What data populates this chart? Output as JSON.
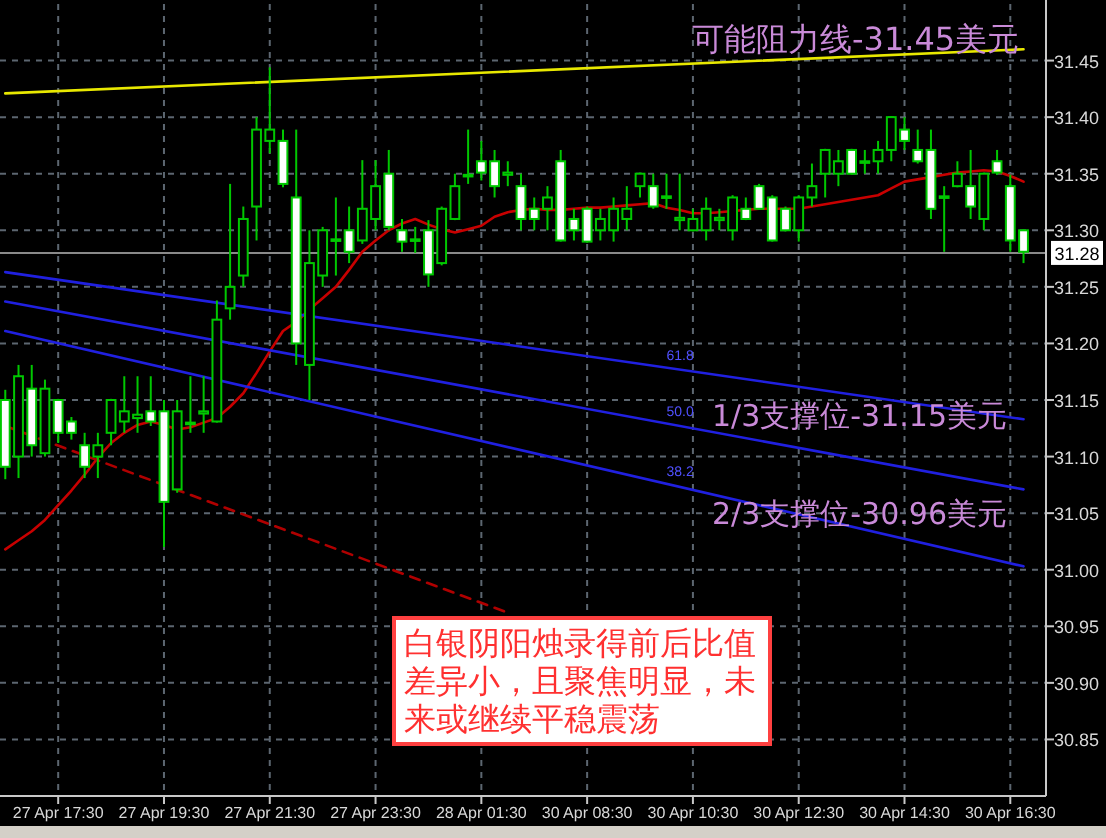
{
  "chart_data": {
    "type": "candlestick",
    "categories": [
      null,
      null,
      null,
      null,
      "27 Apr 17:30",
      null,
      null,
      null,
      null,
      null,
      null,
      null,
      "27 Apr 19:30",
      null,
      null,
      null,
      null,
      null,
      null,
      null,
      "27 Apr 21:30",
      null,
      null,
      null,
      null,
      null,
      null,
      null,
      "27 Apr 23:30",
      null,
      null,
      null,
      null,
      null,
      null,
      null,
      "28 Apr 01:30",
      null,
      null,
      null,
      null,
      null,
      null,
      null,
      "30 Apr 08:30",
      null,
      null,
      null,
      null,
      null,
      null,
      null,
      "30 Apr 10:30",
      null,
      null,
      null,
      null,
      null,
      null,
      null,
      "30 Apr 12:30",
      null,
      null,
      null,
      null,
      null,
      null,
      null,
      "30 Apr 14:30",
      null,
      null,
      null,
      null,
      null,
      null,
      null,
      "30 Apr 16:30",
      null
    ],
    "color": "#00c800",
    "ohlc": [
      [
        31.15,
        31.159,
        31.08,
        31.091
      ],
      [
        31.1,
        31.181,
        31.081,
        31.171
      ],
      [
        31.16,
        31.181,
        31.1,
        31.11
      ],
      [
        31.103,
        31.168,
        31.1,
        31.16
      ],
      [
        31.15,
        31.151,
        31.112,
        31.121
      ],
      [
        31.131,
        31.135,
        31.115,
        31.121
      ],
      [
        31.11,
        31.121,
        31.081,
        31.091
      ],
      [
        31.1,
        31.121,
        31.081,
        31.11
      ],
      [
        31.121,
        31.151,
        31.11,
        31.15
      ],
      [
        31.131,
        31.171,
        31.121,
        31.14
      ],
      [
        31.134,
        31.171,
        31.121,
        31.137
      ],
      [
        31.14,
        31.171,
        31.127,
        31.131
      ],
      [
        31.14,
        31.15,
        31.02,
        31.06
      ],
      [
        31.071,
        31.15,
        31.068,
        31.14
      ],
      [
        31.129,
        31.171,
        31.121,
        31.13
      ],
      [
        31.138,
        31.171,
        31.121,
        31.14
      ],
      [
        31.131,
        31.238,
        31.13,
        31.221
      ],
      [
        31.231,
        31.341,
        31.221,
        31.25
      ],
      [
        31.26,
        31.321,
        31.25,
        31.31
      ],
      [
        31.321,
        31.4,
        31.291,
        31.389
      ],
      [
        31.379,
        31.444,
        31.368,
        31.389
      ],
      [
        31.379,
        31.389,
        31.338,
        31.341
      ],
      [
        31.329,
        31.389,
        31.181,
        31.2
      ],
      [
        31.181,
        31.3,
        31.15,
        31.271
      ],
      [
        31.26,
        31.303,
        31.25,
        31.3
      ],
      [
        31.291,
        31.329,
        31.26,
        31.292
      ],
      [
        31.3,
        31.321,
        31.271,
        31.281
      ],
      [
        31.291,
        31.362,
        31.288,
        31.319
      ],
      [
        31.31,
        31.362,
        31.3,
        31.339
      ],
      [
        31.35,
        31.371,
        31.3,
        31.303
      ],
      [
        31.3,
        31.31,
        31.281,
        31.29
      ],
      [
        31.292,
        31.303,
        31.28,
        31.291
      ],
      [
        31.3,
        31.309,
        31.25,
        31.261
      ],
      [
        31.271,
        31.321,
        31.269,
        31.319
      ],
      [
        31.31,
        31.35,
        31.309,
        31.339
      ],
      [
        31.348,
        31.389,
        31.341,
        31.349
      ],
      [
        31.361,
        31.379,
        31.344,
        31.351
      ],
      [
        31.361,
        31.371,
        31.329,
        31.339
      ],
      [
        31.349,
        31.361,
        31.339,
        31.351
      ],
      [
        31.339,
        31.35,
        31.3,
        31.31
      ],
      [
        31.319,
        31.329,
        31.3,
        31.31
      ],
      [
        31.319,
        31.339,
        31.3,
        31.329
      ],
      [
        31.361,
        31.371,
        31.29,
        31.291
      ],
      [
        31.31,
        31.319,
        31.291,
        31.3
      ],
      [
        31.319,
        31.321,
        31.289,
        31.29
      ],
      [
        31.3,
        31.319,
        31.291,
        31.31
      ],
      [
        31.3,
        31.329,
        31.29,
        31.319
      ],
      [
        31.31,
        31.339,
        31.3,
        31.319
      ],
      [
        31.339,
        31.351,
        31.329,
        31.35
      ],
      [
        31.339,
        31.35,
        31.319,
        31.321
      ],
      [
        31.329,
        31.35,
        31.319,
        31.33
      ],
      [
        31.309,
        31.35,
        31.3,
        31.311
      ],
      [
        31.3,
        31.319,
        31.299,
        31.31
      ],
      [
        31.3,
        31.329,
        31.291,
        31.319
      ],
      [
        31.309,
        31.319,
        31.3,
        31.311
      ],
      [
        31.3,
        31.331,
        31.291,
        31.329
      ],
      [
        31.319,
        31.329,
        31.309,
        31.31
      ],
      [
        31.339,
        31.341,
        31.318,
        31.319
      ],
      [
        31.329,
        31.331,
        31.29,
        31.291
      ],
      [
        31.319,
        31.321,
        31.299,
        31.3
      ],
      [
        31.3,
        31.331,
        31.29,
        31.329
      ],
      [
        31.329,
        31.359,
        31.321,
        31.339
      ],
      [
        31.35,
        31.372,
        31.329,
        31.371
      ],
      [
        31.35,
        31.371,
        31.339,
        31.361
      ],
      [
        31.371,
        31.372,
        31.349,
        31.35
      ],
      [
        31.36,
        31.371,
        31.35,
        31.361
      ],
      [
        31.361,
        31.379,
        31.35,
        31.371
      ],
      [
        31.371,
        31.401,
        31.361,
        31.4
      ],
      [
        31.389,
        31.4,
        31.371,
        31.379
      ],
      [
        31.371,
        31.389,
        31.359,
        31.361
      ],
      [
        31.371,
        31.389,
        31.31,
        31.319
      ],
      [
        31.329,
        31.339,
        31.281,
        31.33
      ],
      [
        31.339,
        31.361,
        31.338,
        31.35
      ],
      [
        31.339,
        31.371,
        31.31,
        31.321
      ],
      [
        31.31,
        31.351,
        31.3,
        31.35
      ],
      [
        31.361,
        31.371,
        31.349,
        31.351
      ],
      [
        31.339,
        31.349,
        31.281,
        31.291
      ],
      [
        31.3,
        31.301,
        31.271,
        31.281
      ]
    ],
    "series": [
      {
        "type": "line",
        "color": "#c80000",
        "values": [
          31.018,
          31.026,
          31.034,
          31.044,
          31.057,
          31.07,
          31.084,
          31.099,
          31.112,
          31.121,
          31.128,
          31.131,
          31.128,
          31.124,
          31.126,
          31.13,
          31.134,
          31.144,
          31.156,
          31.174,
          31.193,
          31.211,
          31.219,
          31.23,
          31.24,
          31.25,
          31.265,
          31.281,
          31.291,
          31.3,
          31.306,
          31.31,
          31.305,
          31.301,
          31.298,
          31.301,
          31.304,
          31.312,
          31.316,
          31.318,
          31.319,
          31.318,
          31.318,
          31.319,
          31.32,
          31.32,
          31.321,
          31.322,
          31.323,
          31.324,
          31.32,
          31.318,
          31.315,
          31.315,
          31.316,
          31.317,
          31.318,
          31.319,
          31.319,
          31.319,
          31.319,
          31.321,
          31.323,
          31.325,
          31.327,
          31.329,
          31.331,
          31.337,
          31.343,
          31.345,
          31.347,
          31.349,
          31.351,
          31.352,
          31.353,
          31.352,
          31.348,
          31.343
        ]
      },
      {
        "type": "line",
        "color": "#e8e800",
        "values": [
          31.421,
          null,
          null,
          null,
          null,
          null,
          null,
          null,
          null,
          null,
          null,
          null,
          null,
          null,
          null,
          null,
          null,
          null,
          null,
          null,
          null,
          null,
          null,
          null,
          null,
          null,
          null,
          null,
          null,
          null,
          null,
          null,
          null,
          null,
          null,
          null,
          null,
          null,
          null,
          null,
          null,
          null,
          null,
          null,
          null,
          null,
          null,
          null,
          null,
          null,
          null,
          null,
          null,
          null,
          null,
          null,
          null,
          null,
          null,
          null,
          null,
          null,
          null,
          null,
          null,
          null,
          null,
          null,
          null,
          null,
          null,
          null,
          null,
          null,
          null,
          null,
          null,
          31.46
        ]
      },
      {
        "type": "line",
        "name": "61.8",
        "color": "#2020e0",
        "values": [
          31.263,
          null,
          null,
          null,
          null,
          null,
          null,
          null,
          null,
          null,
          null,
          null,
          null,
          null,
          null,
          null,
          null,
          null,
          null,
          null,
          null,
          null,
          null,
          null,
          null,
          null,
          null,
          null,
          null,
          null,
          null,
          null,
          null,
          null,
          null,
          null,
          null,
          null,
          null,
          null,
          null,
          null,
          null,
          null,
          null,
          null,
          null,
          null,
          null,
          null,
          null,
          null,
          null,
          null,
          null,
          null,
          null,
          null,
          null,
          null,
          null,
          null,
          null,
          null,
          null,
          null,
          null,
          null,
          null,
          null,
          null,
          null,
          null,
          null,
          null,
          null,
          null,
          31.133
        ]
      },
      {
        "type": "line",
        "name": "50.0",
        "color": "#2020e0",
        "values": [
          31.237,
          null,
          null,
          null,
          null,
          null,
          null,
          null,
          null,
          null,
          null,
          null,
          null,
          null,
          null,
          null,
          null,
          null,
          null,
          null,
          null,
          null,
          null,
          null,
          null,
          null,
          null,
          null,
          null,
          null,
          null,
          null,
          null,
          null,
          null,
          null,
          null,
          null,
          null,
          null,
          null,
          null,
          null,
          null,
          null,
          null,
          null,
          null,
          null,
          null,
          null,
          null,
          null,
          null,
          null,
          null,
          null,
          null,
          null,
          null,
          null,
          null,
          null,
          null,
          null,
          null,
          null,
          null,
          null,
          null,
          null,
          null,
          null,
          null,
          null,
          null,
          null,
          31.071
        ]
      },
      {
        "type": "line",
        "name": "38.2",
        "color": "#2020e0",
        "values": [
          31.211,
          null,
          null,
          null,
          null,
          null,
          null,
          null,
          null,
          null,
          null,
          null,
          null,
          null,
          null,
          null,
          null,
          null,
          null,
          null,
          null,
          null,
          null,
          null,
          null,
          null,
          null,
          null,
          null,
          null,
          null,
          null,
          null,
          null,
          null,
          null,
          null,
          null,
          null,
          null,
          null,
          null,
          null,
          null,
          null,
          null,
          null,
          null,
          null,
          null,
          null,
          null,
          null,
          null,
          null,
          null,
          null,
          null,
          null,
          null,
          null,
          null,
          null,
          null,
          null,
          null,
          null,
          null,
          null,
          null,
          null,
          null,
          null,
          null,
          null,
          null,
          null,
          31.003
        ]
      },
      {
        "type": "line",
        "color": "#b00000",
        "line_style": "dashed",
        "values": [
          31.127,
          null,
          null,
          null,
          null,
          null,
          null,
          null,
          null,
          null,
          null,
          null,
          null,
          null,
          null,
          null,
          null,
          null,
          null,
          null,
          null,
          null,
          null,
          null,
          null,
          null,
          null,
          null,
          null,
          null,
          null,
          null,
          null,
          null,
          null,
          null,
          null,
          null,
          30.962,
          null,
          null,
          null,
          null,
          null,
          null,
          null,
          null,
          null,
          null,
          null,
          null,
          null,
          null,
          null,
          null,
          null,
          null,
          null,
          null,
          null,
          null,
          null,
          null,
          null,
          null,
          null,
          null,
          null,
          null,
          null,
          null,
          null,
          null,
          null,
          null,
          null,
          null,
          null
        ]
      }
    ],
    "ylim": [
      30.8,
      31.5
    ],
    "yticks": [
      30.85,
      {
        "value": 30.9,
        "label": "30.90"
      },
      30.95,
      {
        "value": 31.0,
        "label": "31.00"
      },
      31.05,
      {
        "value": 31.1,
        "label": "31.10"
      },
      31.15,
      {
        "value": 31.2,
        "label": "31.20"
      },
      31.25,
      {
        "value": 31.3,
        "label": "31.30"
      },
      31.35,
      {
        "value": 31.4,
        "label": "31.40"
      },
      31.45
    ],
    "grid": true,
    "ref_lines": [
      {
        "axis": "y",
        "value": 31.28,
        "label": "31.28",
        "color": "#8a8a8a"
      }
    ],
    "annotations": [
      "可能阻力线-31.45美元",
      "1/3支撑位-31.15美元",
      "2/3支撑位-30.96美元",
      "白银阴阳烛录得前后比值差异小，且聚焦明显，未来或继续平稳震荡"
    ]
  }
}
